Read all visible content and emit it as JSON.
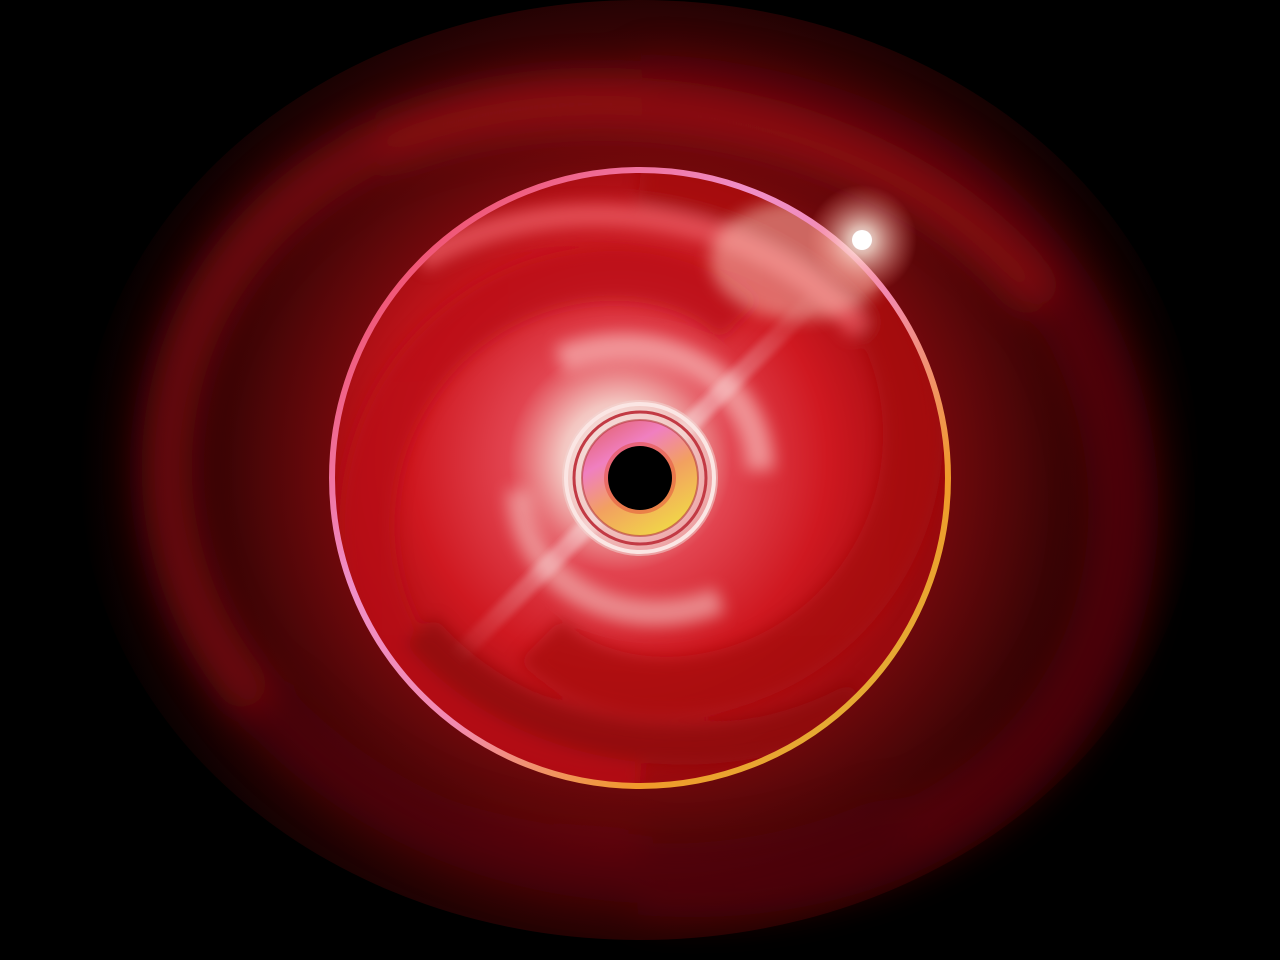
{
  "artwork": {
    "subject": "disc-icon",
    "colors": {
      "background": "#000000",
      "glow_inner": "#b30f12",
      "glow_outer": "#3a0405",
      "disc_dark": "#8e0a0d",
      "disc_mid": "#d61a22",
      "disc_light": "#f3c5c0",
      "rim_pink": "#f08fc8",
      "rim_red": "#f0303e",
      "rim_orange": "#f09a2a",
      "rim_yellow": "#d8c040",
      "hub_yellow": "#f1d24a",
      "hub_pink": "#f07fc0",
      "spindle_hole": "#000000",
      "flare": "#ffffff"
    }
  }
}
